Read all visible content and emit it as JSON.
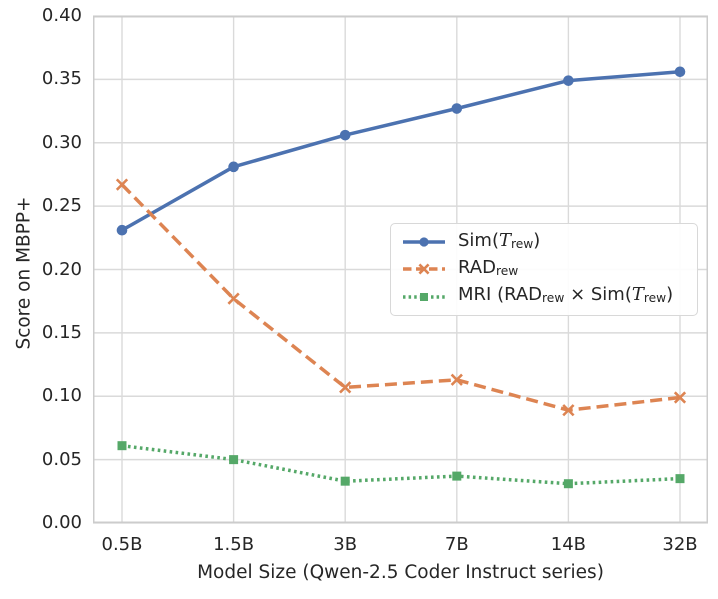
{
  "figure": {
    "background": "#ffffff",
    "text_color": "#262626",
    "grid_color": "#dadada",
    "spine_color": "#cccccc"
  },
  "chart_data": {
    "type": "line",
    "title": "",
    "xlabel": "Model Size (Qwen-2.5 Coder Instruct series)",
    "ylabel": "Score on MBPP+",
    "categories": [
      "0.5B",
      "1.5B",
      "3B",
      "7B",
      "14B",
      "32B"
    ],
    "ylim": [
      0.0,
      0.4
    ],
    "yticks": [
      0.0,
      0.05,
      0.1,
      0.15,
      0.2,
      0.25,
      0.3,
      0.35,
      0.4
    ],
    "ytick_labels": [
      "0.00",
      "0.05",
      "0.10",
      "0.15",
      "0.20",
      "0.25",
      "0.30",
      "0.35",
      "0.40"
    ],
    "grid": true,
    "legend_position": "center right, inside axes",
    "series": [
      {
        "name": "Sim(T_rew)",
        "values": [
          0.231,
          0.281,
          0.306,
          0.327,
          0.349,
          0.356
        ],
        "color": "#4c72b0",
        "line_style": "solid",
        "marker": "circle",
        "label_segments": [
          {
            "t": "Sim("
          },
          {
            "t": "T",
            "s": "cal"
          },
          {
            "t": "rew",
            "s": "sub"
          },
          {
            "t": ")"
          }
        ]
      },
      {
        "name": "RAD_rew",
        "values": [
          0.267,
          0.177,
          0.107,
          0.113,
          0.089,
          0.099
        ],
        "color": "#dd8452",
        "line_style": "dashed",
        "marker": "x",
        "label_segments": [
          {
            "t": "RAD"
          },
          {
            "t": "rew",
            "s": "sub"
          }
        ]
      },
      {
        "name": "MRI (RAD_rew × Sim(T_rew)",
        "values": [
          0.061,
          0.05,
          0.033,
          0.037,
          0.031,
          0.035
        ],
        "color": "#55a868",
        "line_style": "dotted",
        "marker": "square",
        "label_segments": [
          {
            "t": "MRI ("
          },
          {
            "t": "RAD"
          },
          {
            "t": "rew",
            "s": "sub"
          },
          {
            "t": " × "
          },
          {
            "t": "Sim("
          },
          {
            "t": "T",
            "s": "cal"
          },
          {
            "t": "rew",
            "s": "sub"
          },
          {
            "t": ")"
          }
        ]
      }
    ]
  }
}
